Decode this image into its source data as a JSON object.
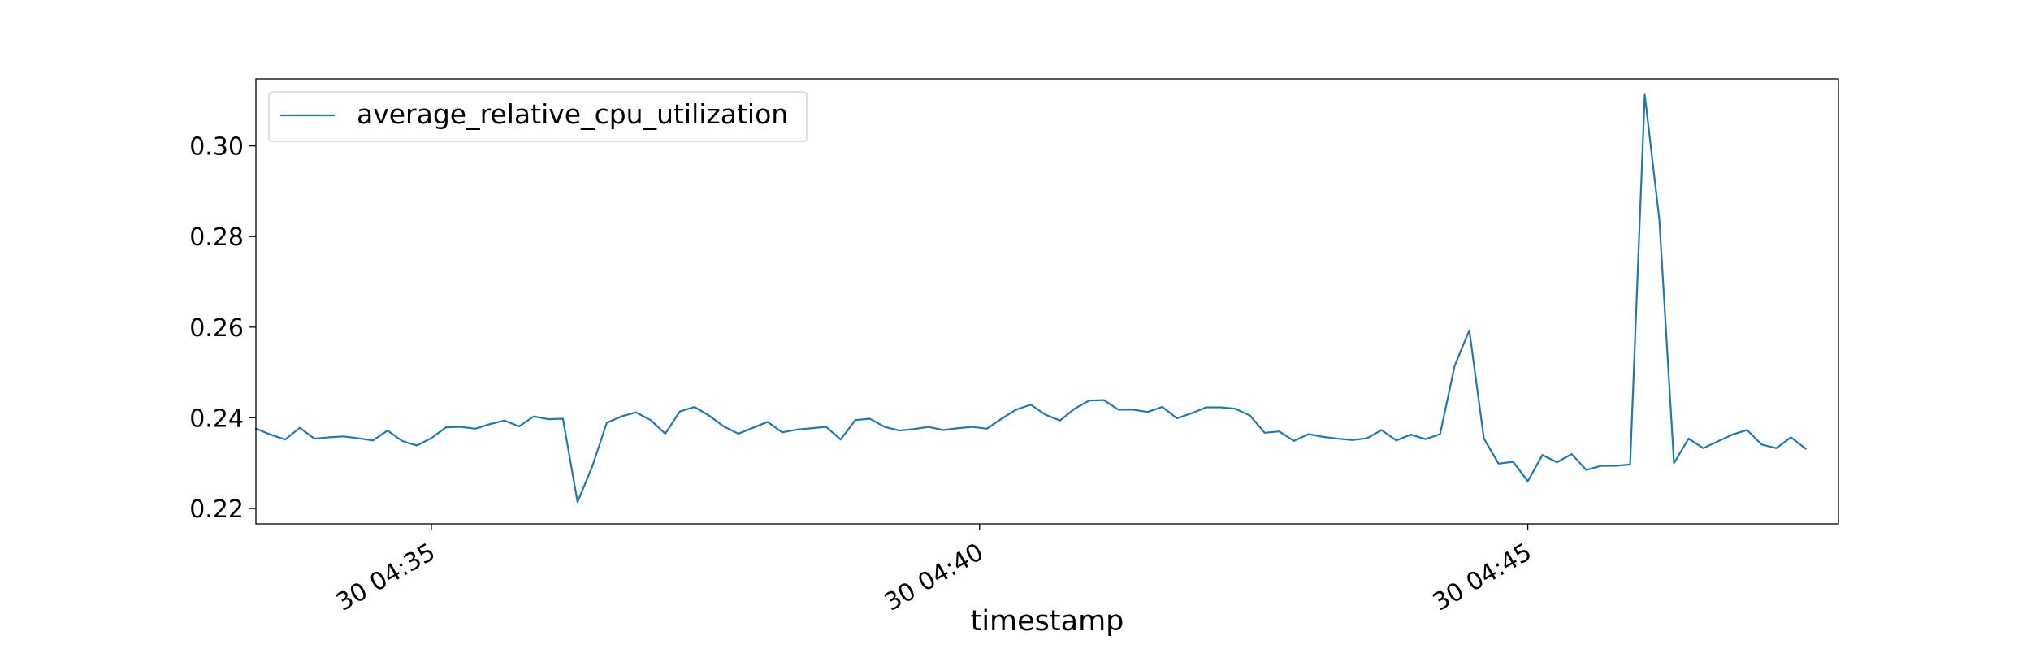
{
  "chart_data": {
    "type": "line",
    "title": "",
    "xlabel": "timestamp",
    "ylabel": "",
    "grid": false,
    "legend_placement": "top-left",
    "x_start": "30 04:33:24",
    "x_end": "30 04:47:50",
    "xlim": [
      "30 04:33:24",
      "30 04:47:50"
    ],
    "ylim": [
      0.2166,
      0.3148
    ],
    "x_ticks": [
      {
        "label": "30 04:35",
        "value": "30 04:35:00"
      },
      {
        "label": "30 04:40",
        "value": "30 04:40:00"
      },
      {
        "label": "30 04:45",
        "value": "30 04:45:00"
      }
    ],
    "y_ticks": [
      {
        "label": "0.22",
        "value": 0.22
      },
      {
        "label": "0.24",
        "value": 0.24
      },
      {
        "label": "0.26",
        "value": 0.26
      },
      {
        "label": "0.28",
        "value": 0.28
      },
      {
        "label": "0.30",
        "value": 0.3
      }
    ],
    "series": [
      {
        "name": "average_relative_cpu_utilization",
        "color": "#1f77b4",
        "interval_seconds": 8,
        "values": [
          0.2376,
          0.2363,
          0.2352,
          0.2378,
          0.2354,
          0.2357,
          0.2359,
          0.2355,
          0.235,
          0.2372,
          0.2349,
          0.2339,
          0.2355,
          0.2379,
          0.238,
          0.2376,
          0.2386,
          0.2394,
          0.2381,
          0.2403,
          0.2397,
          0.2398,
          0.2214,
          0.2292,
          0.2389,
          0.2403,
          0.2412,
          0.2395,
          0.2365,
          0.2414,
          0.2424,
          0.2405,
          0.2381,
          0.2365,
          0.2378,
          0.2391,
          0.2368,
          0.2374,
          0.2377,
          0.238,
          0.2352,
          0.2395,
          0.2398,
          0.238,
          0.2372,
          0.2375,
          0.238,
          0.2373,
          0.2377,
          0.238,
          0.2376,
          0.2398,
          0.2418,
          0.2429,
          0.2407,
          0.2394,
          0.242,
          0.2438,
          0.2439,
          0.2418,
          0.2418,
          0.2413,
          0.2424,
          0.2399,
          0.241,
          0.2423,
          0.2423,
          0.242,
          0.2405,
          0.2367,
          0.237,
          0.2349,
          0.2364,
          0.2358,
          0.2354,
          0.2351,
          0.2355,
          0.2373,
          0.235,
          0.2363,
          0.2353,
          0.2364,
          0.2515,
          0.2593,
          0.2354,
          0.2299,
          0.2303,
          0.226,
          0.2318,
          0.2302,
          0.232,
          0.2285,
          0.2294,
          0.2294,
          0.2297,
          0.3113,
          0.2837,
          0.23,
          0.2354,
          0.2333,
          0.2348,
          0.2363,
          0.2373,
          0.2341,
          0.2333,
          0.2357,
          0.2332
        ]
      }
    ]
  }
}
